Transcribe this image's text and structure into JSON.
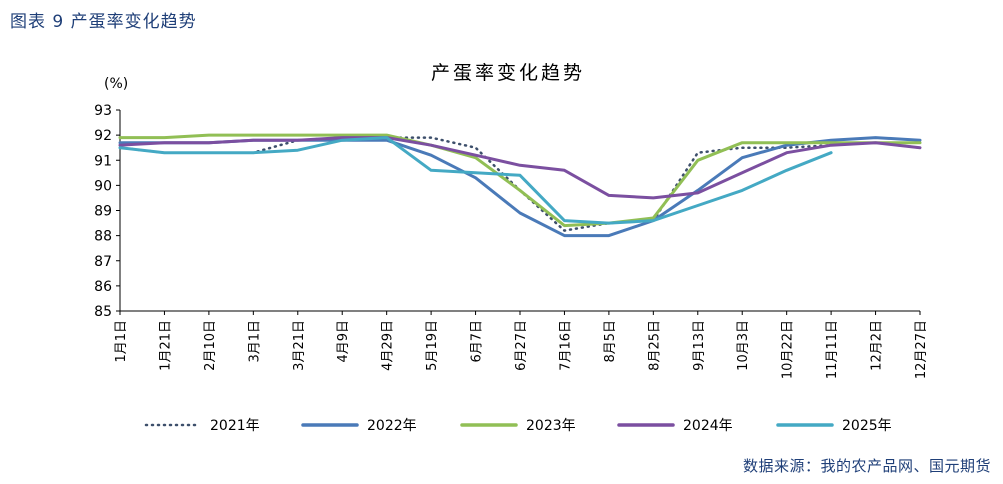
{
  "figure_caption": "图表 9  产蛋率变化趋势",
  "source": "数据来源：我的农产品网、国元期货",
  "colors": {
    "2021": "#3d4f6b",
    "2022": "#4a7ab8",
    "2023": "#91bf55",
    "2024": "#7b4fa0",
    "2025": "#44a9c4"
  },
  "chart_data": {
    "type": "line",
    "title": "产蛋率变化趋势",
    "ylabel": "(%)",
    "xlabel": "",
    "ylim": [
      85,
      93
    ],
    "yticks": [
      85,
      86,
      87,
      88,
      89,
      90,
      91,
      92,
      93
    ],
    "grid": false,
    "legend_position": "bottom",
    "x": [
      "1月1日",
      "1月21日",
      "2月10日",
      "3月1日",
      "3月21日",
      "4月9日",
      "4月29日",
      "5月19日",
      "6月7日",
      "6月27日",
      "7月16日",
      "8月5日",
      "8月25日",
      "9月13日",
      "10月3日",
      "10月22日",
      "11月11日",
      "12月2日",
      "12月27日"
    ],
    "series": [
      {
        "name": "2021年",
        "style": "dotted",
        "values": [
          91.5,
          91.3,
          91.3,
          91.3,
          91.8,
          91.9,
          91.9,
          91.9,
          91.5,
          89.8,
          88.2,
          88.5,
          88.6,
          91.3,
          91.5,
          91.5,
          91.6,
          91.7,
          91.5
        ]
      },
      {
        "name": "2022年",
        "style": "solid",
        "values": [
          91.7,
          91.7,
          91.7,
          91.8,
          91.8,
          91.8,
          91.8,
          91.2,
          90.3,
          88.9,
          88.0,
          88.0,
          88.6,
          89.8,
          91.1,
          91.6,
          91.8,
          91.9,
          91.8
        ]
      },
      {
        "name": "2023年",
        "style": "solid",
        "values": [
          91.9,
          91.9,
          92.0,
          92.0,
          92.0,
          92.0,
          92.0,
          91.6,
          91.1,
          89.8,
          88.4,
          88.5,
          88.7,
          91.0,
          91.7,
          91.7,
          91.7,
          91.7,
          91.7
        ]
      },
      {
        "name": "2024年",
        "style": "solid",
        "values": [
          91.6,
          91.7,
          91.7,
          91.8,
          91.8,
          91.9,
          91.9,
          91.6,
          91.2,
          90.8,
          90.6,
          89.6,
          89.5,
          89.7,
          90.5,
          91.3,
          91.6,
          91.7,
          91.5
        ]
      },
      {
        "name": "2025年",
        "style": "solid",
        "values": [
          91.5,
          91.3,
          91.3,
          91.3,
          91.4,
          91.8,
          91.9,
          90.6,
          90.5,
          90.4,
          88.6,
          88.5,
          88.6,
          89.2,
          89.8,
          90.6,
          91.3,
          null,
          null
        ]
      }
    ],
    "legend": [
      "2021年",
      "2022年",
      "2023年",
      "2024年",
      "2025年"
    ]
  }
}
